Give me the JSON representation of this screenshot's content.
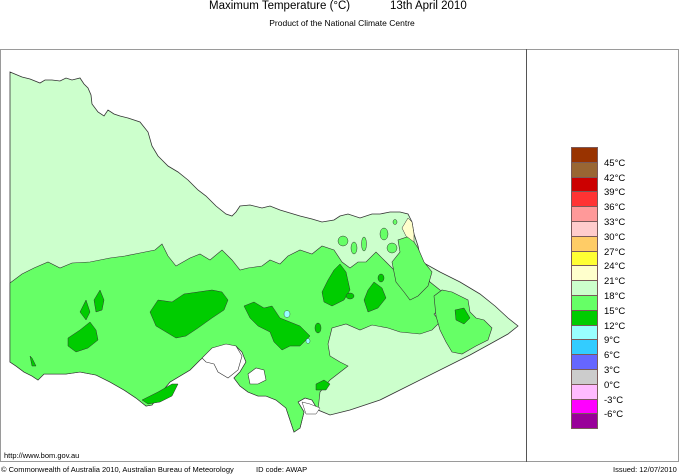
{
  "header": {
    "title": "Maximum Temperature (°C)",
    "date": "13th April 2010",
    "subtitle": "Product of the National Climate Centre"
  },
  "map": {
    "region": "Victoria, Australia",
    "variable": "Maximum Temperature",
    "colors": {
      "18-21": "#ccffcc",
      "15-18": "#66ff66",
      "12-15": "#00cc00",
      "9-12": "#99ffff",
      "21-24": "#ffffcc",
      "outline": "#333333",
      "frame": "#9a9a9a"
    }
  },
  "legend": {
    "boxes": [
      {
        "color": "#993300"
      },
      {
        "color": "#996633"
      },
      {
        "color": "#cc0000"
      },
      {
        "color": "#ff3333"
      },
      {
        "color": "#ff9999"
      },
      {
        "color": "#ffcccc"
      },
      {
        "color": "#ffcc66"
      },
      {
        "color": "#ffff33"
      },
      {
        "color": "#ffffcc"
      },
      {
        "color": "#ccffcc"
      },
      {
        "color": "#66ff66"
      },
      {
        "color": "#00cc00"
      },
      {
        "color": "#99ffff"
      },
      {
        "color": "#33ccff"
      },
      {
        "color": "#6666ff"
      },
      {
        "color": "#cccccc"
      },
      {
        "color": "#ffbbff"
      },
      {
        "color": "#ff00ff"
      },
      {
        "color": "#990099"
      }
    ],
    "labels": [
      "45",
      "42",
      "39",
      "36",
      "33",
      "30",
      "27",
      "24",
      "21",
      "18",
      "15",
      "12",
      "9",
      "6",
      "3",
      "0",
      "-3",
      "-6"
    ],
    "unit": "°C"
  },
  "footer": {
    "url": "http://www.bom.gov.au",
    "copyright": "© Commonwealth of Australia 2010, Australian Bureau of Meteorology",
    "id_code": "ID code: AWAP",
    "issued": "Issued: 12/07/2010"
  }
}
